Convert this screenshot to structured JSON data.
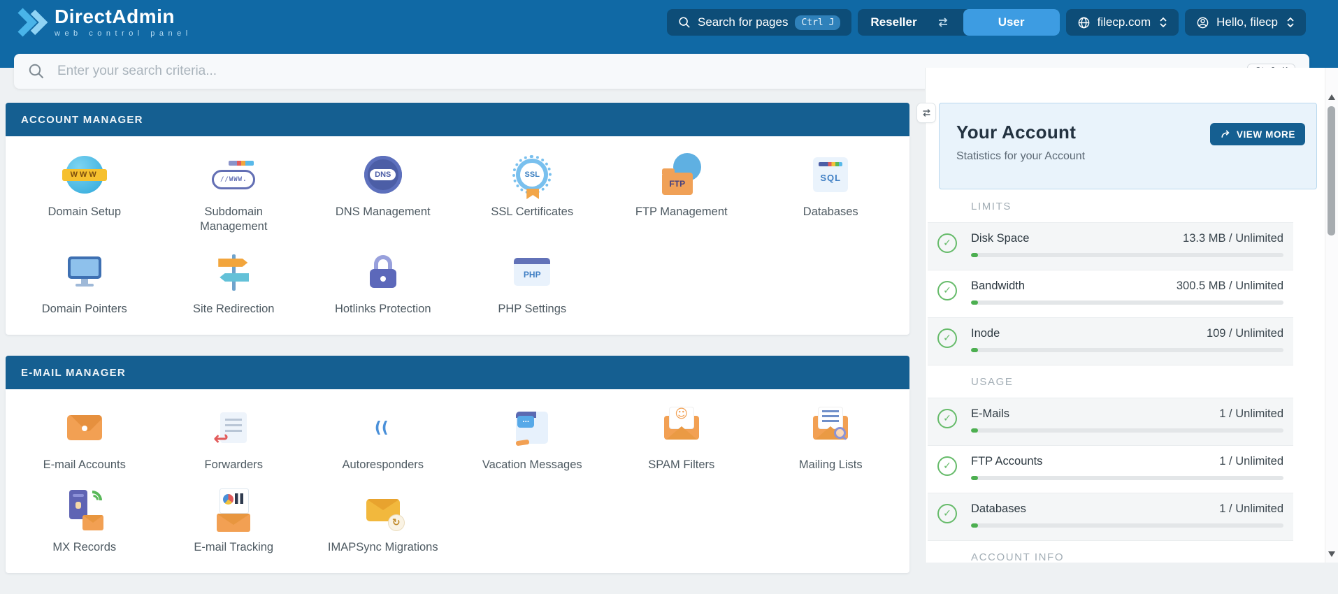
{
  "navbar": {
    "logo": {
      "title": "DirectAdmin",
      "subtitle": "web control panel"
    },
    "page_search": {
      "label": "Search for pages",
      "shortcut": "Ctrl J"
    },
    "level_toggle": {
      "reseller": "Reseller",
      "user": "User",
      "active": "User"
    },
    "domain_selector": {
      "value": "filecp.com"
    },
    "user_menu": {
      "label": "Hello, filecp"
    }
  },
  "search": {
    "placeholder": "Enter your search criteria...",
    "shortcut": "Ctrl K"
  },
  "sections": [
    {
      "title": "ACCOUNT MANAGER",
      "items": [
        {
          "label": "Domain Setup",
          "icon": "domain-globe"
        },
        {
          "label": "Subdomain Management",
          "icon": "subdomain-bar"
        },
        {
          "label": "DNS Management",
          "icon": "dns-globe"
        },
        {
          "label": "SSL Certificates",
          "icon": "ssl-badge"
        },
        {
          "label": "FTP Management",
          "icon": "ftp-folder"
        },
        {
          "label": "Databases",
          "icon": "sql-database"
        },
        {
          "label": "Domain Pointers",
          "icon": "monitor-pointer"
        },
        {
          "label": "Site Redirection",
          "icon": "signpost"
        },
        {
          "label": "Hotlinks Protection",
          "icon": "padlock"
        },
        {
          "label": "PHP Settings",
          "icon": "php-window"
        }
      ]
    },
    {
      "title": "E-MAIL MANAGER",
      "items": [
        {
          "label": "E-mail Accounts",
          "icon": "envelope"
        },
        {
          "label": "Forwarders",
          "icon": "forward-arrow"
        },
        {
          "label": "Autoresponders",
          "icon": "auto-reply"
        },
        {
          "label": "Vacation Messages",
          "icon": "vacation-note"
        },
        {
          "label": "SPAM Filters",
          "icon": "spam-envelope"
        },
        {
          "label": "Mailing Lists",
          "icon": "mailing-list"
        },
        {
          "label": "MX Records",
          "icon": "mx-server"
        },
        {
          "label": "E-mail Tracking",
          "icon": "email-chart"
        },
        {
          "label": "IMAPSync Migrations",
          "icon": "sync-envelope"
        }
      ]
    }
  ],
  "sidebar": {
    "card": {
      "title": "Your Account",
      "subtitle": "Statistics for your Account",
      "button": "VIEW MORE"
    },
    "groups": [
      {
        "heading": "LIMITS",
        "rows": [
          {
            "label": "Disk Space",
            "value": "13.3 MB / Unlimited",
            "percent": 1
          },
          {
            "label": "Bandwidth",
            "value": "300.5 MB / Unlimited",
            "percent": 1
          },
          {
            "label": "Inode",
            "value": "109 / Unlimited",
            "percent": 1
          }
        ]
      },
      {
        "heading": "USAGE",
        "rows": [
          {
            "label": "E-Mails",
            "value": "1 / Unlimited",
            "percent": 1
          },
          {
            "label": "FTP Accounts",
            "value": "1 / Unlimited",
            "percent": 1
          },
          {
            "label": "Databases",
            "value": "1 / Unlimited",
            "percent": 1
          }
        ]
      },
      {
        "heading": "ACCOUNT INFO",
        "rows": []
      }
    ]
  },
  "colors": {
    "navbar": "#1069a5",
    "section_header": "#155f91",
    "active_toggle": "#3d9ce2",
    "success": "#4caf50"
  }
}
